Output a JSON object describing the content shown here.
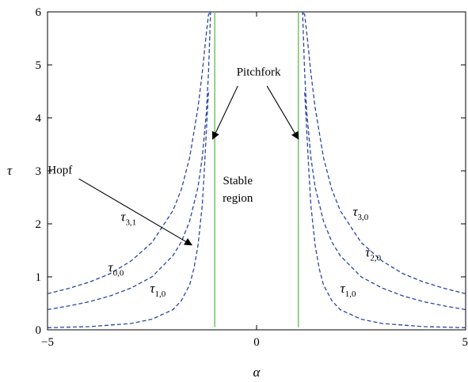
{
  "chart_data": {
    "type": "line",
    "xlabel": "α",
    "ylabel": "τ",
    "xlim": [
      -5,
      5
    ],
    "ylim": [
      0,
      6
    ],
    "xticks": [
      "−5",
      "0",
      "5"
    ],
    "yticks": [
      "0",
      "1",
      "2",
      "3",
      "4",
      "5",
      "6"
    ],
    "grid": false,
    "colors": {
      "dashed": "#2b45a3",
      "solid": "#74c365"
    },
    "series": [
      {
        "name": "τ0,0",
        "style": "dashed",
        "side": "left",
        "x": [
          -5,
          -4.5,
          -4,
          -3.5,
          -3,
          -2.5,
          -2,
          -1.8,
          -1.6,
          -1.4,
          -1.3,
          -1.2,
          -1.15,
          -1.1
        ],
        "y": [
          0.38,
          0.45,
          0.53,
          0.64,
          0.79,
          1.0,
          1.4,
          1.66,
          2.05,
          2.7,
          3.25,
          4.1,
          4.85,
          6.0
        ]
      },
      {
        "name": "τ1,0",
        "style": "dashed",
        "side": "left",
        "x": [
          -5,
          -4,
          -3,
          -2.5,
          -2,
          -1.8,
          -1.6,
          -1.5,
          -1.4,
          -1.3,
          -1.25,
          -1.2,
          -1.15
        ],
        "y": [
          0.04,
          0.06,
          0.12,
          0.2,
          0.38,
          0.55,
          0.85,
          1.15,
          1.6,
          2.35,
          3.0,
          3.75,
          4.5
        ]
      },
      {
        "name": "τ3,1",
        "style": "dashed",
        "side": "left",
        "x": [
          -5,
          -4.5,
          -4,
          -3.5,
          -3,
          -2.5,
          -2,
          -1.8,
          -1.6,
          -1.4,
          -1.3,
          -1.2,
          -1.15,
          -1.1,
          -1.05
        ],
        "y": [
          0.68,
          0.78,
          0.9,
          1.06,
          1.3,
          1.65,
          2.25,
          2.65,
          3.25,
          4.2,
          4.85,
          5.6,
          5.95,
          6.0,
          6.0
        ]
      },
      {
        "name": "τ1,0",
        "style": "dashed",
        "side": "right",
        "x": [
          5,
          4,
          3,
          2.5,
          2,
          1.8,
          1.6,
          1.5,
          1.4,
          1.3,
          1.25,
          1.2,
          1.15
        ],
        "y": [
          0.04,
          0.06,
          0.12,
          0.2,
          0.38,
          0.55,
          0.85,
          1.15,
          1.6,
          2.35,
          3.0,
          3.75,
          4.5
        ]
      },
      {
        "name": "τ2,0",
        "style": "dashed",
        "side": "right",
        "x": [
          5,
          4.5,
          4,
          3.5,
          3,
          2.5,
          2,
          1.8,
          1.6,
          1.4,
          1.3,
          1.2,
          1.15,
          1.1
        ],
        "y": [
          0.38,
          0.45,
          0.53,
          0.64,
          0.79,
          1.0,
          1.4,
          1.66,
          2.05,
          2.7,
          3.25,
          4.1,
          4.85,
          6.0
        ]
      },
      {
        "name": "τ3,0",
        "style": "dashed",
        "side": "right",
        "x": [
          5,
          4.5,
          4,
          3.5,
          3,
          2.5,
          2,
          1.8,
          1.6,
          1.4,
          1.3,
          1.2,
          1.15,
          1.1,
          1.05
        ],
        "y": [
          0.68,
          0.78,
          0.9,
          1.06,
          1.3,
          1.65,
          2.25,
          2.65,
          3.25,
          4.2,
          4.85,
          5.6,
          5.95,
          6.0,
          6.0
        ]
      },
      {
        "name": "pitchfork-left",
        "style": "solid",
        "x": [
          -1.0,
          -1.0
        ],
        "y": [
          0.05,
          6.0
        ]
      },
      {
        "name": "pitchfork-right",
        "style": "solid",
        "x": [
          1.0,
          1.0
        ],
        "y": [
          0.05,
          6.0
        ]
      }
    ],
    "curve_labels": [
      {
        "main": "τ",
        "sub": "3,1",
        "x": -3.25,
        "y": 2.05
      },
      {
        "main": "τ",
        "sub": "0,0",
        "x": -3.55,
        "y": 1.1
      },
      {
        "main": "τ",
        "sub": "1,0",
        "x": -2.55,
        "y": 0.7
      },
      {
        "main": "τ",
        "sub": "3,0",
        "x": 2.3,
        "y": 2.15
      },
      {
        "main": "τ",
        "sub": "2,0",
        "x": 2.6,
        "y": 1.38
      },
      {
        "main": "τ",
        "sub": "1,0",
        "x": 2.0,
        "y": 0.7
      }
    ],
    "annotations": [
      {
        "text": "Pitchfork",
        "x": 0.05,
        "y": 4.8
      },
      {
        "text": "Hopf",
        "x": -4.7,
        "y": 2.95
      },
      {
        "text": "Stable",
        "x": -0.45,
        "y": 2.75
      },
      {
        "text": "region",
        "x": -0.45,
        "y": 2.42
      }
    ],
    "arrows": [
      {
        "from": [
          -0.45,
          4.6
        ],
        "to": [
          -1.05,
          3.6
        ]
      },
      {
        "from": [
          0.25,
          4.6
        ],
        "to": [
          1.0,
          3.6
        ]
      },
      {
        "from": [
          -4.25,
          2.85
        ],
        "to": [
          -1.55,
          1.6
        ]
      }
    ]
  }
}
